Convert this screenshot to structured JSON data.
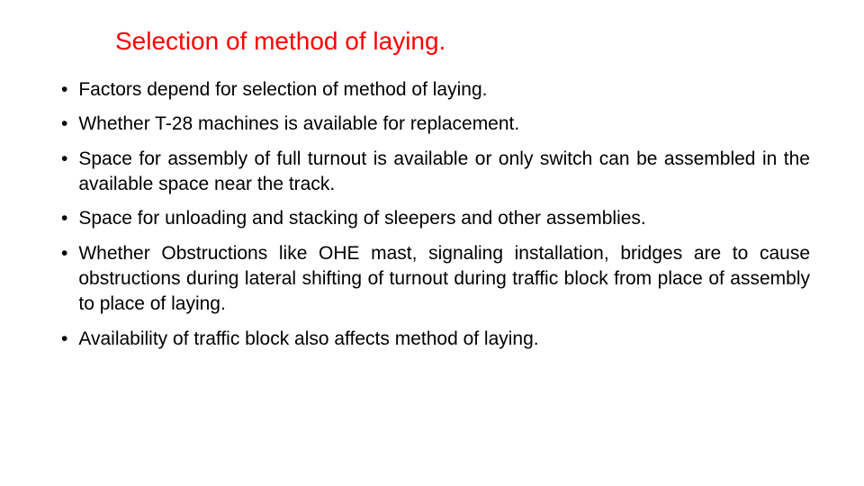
{
  "slide": {
    "title": "Selection of method of laying.",
    "title_color": "#ff0000",
    "title_fontsize": 28,
    "text_color": "#000000",
    "text_fontsize": 21,
    "background_color": "#ffffff",
    "bullets": [
      {
        "text": "Factors depend for  selection of method of laying."
      },
      {
        "text": "Whether T-28 machines is available for replacement."
      },
      {
        "text": "Space for assembly of full turnout is available or only switch can be assembled in the available space near the track."
      },
      {
        "text": "Space for unloading and stacking of sleepers and other assemblies."
      },
      {
        "text": "Whether Obstructions like OHE mast, signaling installation, bridges are  to cause obstructions during lateral shifting of turnout during traffic block from place of assembly to place of laying."
      },
      {
        "text": "Availability of traffic block also affects method of laying."
      }
    ]
  }
}
